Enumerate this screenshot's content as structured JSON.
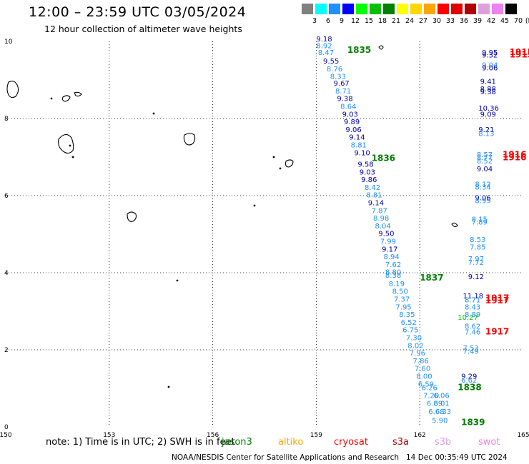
{
  "header": {
    "title": "12:00 – 23:59 UTC 03/05/2024",
    "subtitle": "12 hour collection of altimeter wave heights"
  },
  "legend": {
    "unit": "(ft)",
    "labels": [
      "3",
      "6",
      "9",
      "12",
      "15",
      "18",
      "21",
      "24",
      "27",
      "30",
      "33",
      "36",
      "39",
      "42",
      "45",
      "70"
    ],
    "colors": [
      "#808080",
      "#00ffff",
      "#1e90ff",
      "#0000ff",
      "#00ff00",
      "#00c000",
      "#008000",
      "#ffff00",
      "#ffd700",
      "#ffa500",
      "#ff0000",
      "#e00000",
      "#b00000",
      "#dda0dd",
      "#ee82ee",
      "#000000"
    ]
  },
  "axes": {
    "x_ticks": [
      "150",
      "153",
      "156",
      "159",
      "162",
      "165"
    ],
    "y_ticks": [
      "0",
      "2",
      "4",
      "6",
      "8",
      "10"
    ]
  },
  "chart_data": {
    "type": "scatter",
    "xlim": [
      150,
      165
    ],
    "ylim": [
      0,
      10
    ],
    "grid": true,
    "time_labels": [
      {
        "text": "1835",
        "x": 159.9,
        "y": 9.7,
        "color": "#008000"
      },
      {
        "text": "1836",
        "x": 160.6,
        "y": 6.9,
        "color": "#008000"
      },
      {
        "text": "1837",
        "x": 162.0,
        "y": 3.8,
        "color": "#008000"
      },
      {
        "text": "1838",
        "x": 163.1,
        "y": 0.95,
        "color": "#008000"
      },
      {
        "text": "1839",
        "x": 163.2,
        "y": 0.05,
        "color": "#008000"
      },
      {
        "text": "1915",
        "x": 164.6,
        "y": 9.65,
        "color": "#ff0000"
      },
      {
        "text": "1915",
        "x": 164.6,
        "y": 9.58,
        "color": "#ff0000"
      },
      {
        "text": "1916",
        "x": 164.4,
        "y": 6.99,
        "color": "#ff0000"
      },
      {
        "text": "1916",
        "x": 164.4,
        "y": 6.92,
        "color": "#ff0000"
      },
      {
        "text": "1917",
        "x": 163.9,
        "y": 3.27,
        "color": "#ff0000"
      },
      {
        "text": "1917",
        "x": 163.9,
        "y": 3.2,
        "color": "#ff0000"
      },
      {
        "text": "1917",
        "x": 163.9,
        "y": 2.4,
        "color": "#ff0000"
      }
    ],
    "points": [
      {
        "text": "9.18",
        "x": 159.0,
        "y": 10.0,
        "color": "#0000aa"
      },
      {
        "text": "8.92",
        "x": 159.0,
        "y": 9.82,
        "color": "#1e90ff"
      },
      {
        "text": "8.47",
        "x": 159.05,
        "y": 9.65,
        "color": "#1e90ff"
      },
      {
        "text": "9.55",
        "x": 159.2,
        "y": 9.43,
        "color": "#0000aa"
      },
      {
        "text": "8.76",
        "x": 159.3,
        "y": 9.22,
        "color": "#1e90ff"
      },
      {
        "text": "8.33",
        "x": 159.4,
        "y": 9.03,
        "color": "#1e90ff"
      },
      {
        "text": "9.67",
        "x": 159.5,
        "y": 8.85,
        "color": "#0000aa"
      },
      {
        "text": "8.71",
        "x": 159.55,
        "y": 8.65,
        "color": "#1e90ff"
      },
      {
        "text": "9.38",
        "x": 159.6,
        "y": 8.45,
        "color": "#0000aa"
      },
      {
        "text": "8.64",
        "x": 159.7,
        "y": 8.25,
        "color": "#1e90ff"
      },
      {
        "text": "9.03",
        "x": 159.75,
        "y": 8.05,
        "color": "#0000aa"
      },
      {
        "text": "9.89",
        "x": 159.8,
        "y": 7.85,
        "color": "#0000aa"
      },
      {
        "text": "9.06",
        "x": 159.85,
        "y": 7.65,
        "color": "#0000aa"
      },
      {
        "text": "9.14",
        "x": 159.95,
        "y": 7.45,
        "color": "#0000aa"
      },
      {
        "text": "8.81",
        "x": 160.0,
        "y": 7.25,
        "color": "#1e90ff"
      },
      {
        "text": "9.10",
        "x": 160.1,
        "y": 7.05,
        "color": "#0000aa"
      },
      {
        "text": "9.58",
        "x": 160.2,
        "y": 6.75,
        "color": "#0000aa"
      },
      {
        "text": "9.03",
        "x": 160.25,
        "y": 6.55,
        "color": "#0000aa"
      },
      {
        "text": "9.86",
        "x": 160.3,
        "y": 6.35,
        "color": "#0000aa"
      },
      {
        "text": "8.42",
        "x": 160.4,
        "y": 6.15,
        "color": "#1e90ff"
      },
      {
        "text": "8.81",
        "x": 160.45,
        "y": 5.95,
        "color": "#1e90ff"
      },
      {
        "text": "9.14",
        "x": 160.5,
        "y": 5.75,
        "color": "#0000aa"
      },
      {
        "text": "7.87",
        "x": 160.6,
        "y": 5.55,
        "color": "#1e90ff"
      },
      {
        "text": "8.98",
        "x": 160.65,
        "y": 5.35,
        "color": "#1e90ff"
      },
      {
        "text": "8.04",
        "x": 160.7,
        "y": 5.15,
        "color": "#1e90ff"
      },
      {
        "text": "9.50",
        "x": 160.8,
        "y": 4.95,
        "color": "#0000aa"
      },
      {
        "text": "7.99",
        "x": 160.85,
        "y": 4.75,
        "color": "#1e90ff"
      },
      {
        "text": "9.17",
        "x": 160.9,
        "y": 4.55,
        "color": "#0000aa"
      },
      {
        "text": "8.94",
        "x": 160.95,
        "y": 4.35,
        "color": "#1e90ff"
      },
      {
        "text": "7.62",
        "x": 161.0,
        "y": 4.15,
        "color": "#1e90ff"
      },
      {
        "text": "8.80",
        "x": 161.0,
        "y": 3.95,
        "color": "#1e90ff"
      },
      {
        "text": "8.38",
        "x": 161.0,
        "y": 3.87,
        "color": "#1e90ff"
      },
      {
        "text": "8.19",
        "x": 161.1,
        "y": 3.65,
        "color": "#1e90ff"
      },
      {
        "text": "8.50",
        "x": 161.2,
        "y": 3.45,
        "color": "#1e90ff"
      },
      {
        "text": "7.37",
        "x": 161.25,
        "y": 3.25,
        "color": "#1e90ff"
      },
      {
        "text": "7.95",
        "x": 161.3,
        "y": 3.05,
        "color": "#1e90ff"
      },
      {
        "text": "8.35",
        "x": 161.4,
        "y": 2.85,
        "color": "#1e90ff"
      },
      {
        "text": "6.52",
        "x": 161.45,
        "y": 2.65,
        "color": "#1e90ff"
      },
      {
        "text": "6.75",
        "x": 161.5,
        "y": 2.45,
        "color": "#1e90ff"
      },
      {
        "text": "7.30",
        "x": 161.6,
        "y": 2.25,
        "color": "#1e90ff"
      },
      {
        "text": "8.02",
        "x": 161.65,
        "y": 2.05,
        "color": "#1e90ff"
      },
      {
        "text": "7.96",
        "x": 161.7,
        "y": 1.85,
        "color": "#1e90ff"
      },
      {
        "text": "7.86",
        "x": 161.8,
        "y": 1.65,
        "color": "#1e90ff"
      },
      {
        "text": "7.60",
        "x": 161.85,
        "y": 1.45,
        "color": "#1e90ff"
      },
      {
        "text": "8.00",
        "x": 161.9,
        "y": 1.25,
        "color": "#1e90ff"
      },
      {
        "text": "6.59",
        "x": 161.95,
        "y": 1.05,
        "color": "#1e90ff"
      },
      {
        "text": "6.26",
        "x": 162.05,
        "y": 0.95,
        "color": "#1e90ff"
      },
      {
        "text": "7.20",
        "x": 162.1,
        "y": 0.75,
        "color": "#1e90ff"
      },
      {
        "text": "6.06",
        "x": 162.4,
        "y": 0.75,
        "color": "#1e90ff"
      },
      {
        "text": "6.89",
        "x": 162.2,
        "y": 0.55,
        "color": "#1e90ff"
      },
      {
        "text": "6.01",
        "x": 162.4,
        "y": 0.55,
        "color": "#1e90ff"
      },
      {
        "text": "6.68",
        "x": 162.25,
        "y": 0.33,
        "color": "#1e90ff"
      },
      {
        "text": "6.33",
        "x": 162.45,
        "y": 0.33,
        "color": "#1e90ff"
      },
      {
        "text": "5.90",
        "x": 162.35,
        "y": 0.1,
        "color": "#1e90ff"
      },
      {
        "text": "9.95",
        "x": 163.8,
        "y": 9.65,
        "color": "#0000aa"
      },
      {
        "text": "9.32",
        "x": 163.8,
        "y": 9.58,
        "color": "#0000aa"
      },
      {
        "text": "9.04",
        "x": 163.8,
        "y": 9.32,
        "color": "#1e90ff"
      },
      {
        "text": "9.06",
        "x": 163.8,
        "y": 9.25,
        "color": "#0000aa"
      },
      {
        "text": "9.41",
        "x": 163.75,
        "y": 8.9,
        "color": "#0000aa"
      },
      {
        "text": "8.88",
        "x": 163.75,
        "y": 8.7,
        "color": "#0000aa"
      },
      {
        "text": "9.38",
        "x": 163.75,
        "y": 8.63,
        "color": "#0000aa"
      },
      {
        "text": "10.36",
        "x": 163.7,
        "y": 8.2,
        "color": "#0000aa"
      },
      {
        "text": "9.09",
        "x": 163.75,
        "y": 8.05,
        "color": "#0000aa"
      },
      {
        "text": "9.21",
        "x": 163.7,
        "y": 7.65,
        "color": "#0000aa"
      },
      {
        "text": "8.13",
        "x": 163.7,
        "y": 7.55,
        "color": "#1e90ff"
      },
      {
        "text": "8.57",
        "x": 163.65,
        "y": 7.0,
        "color": "#1e90ff"
      },
      {
        "text": "8.77",
        "x": 163.65,
        "y": 6.93,
        "color": "#1e90ff"
      },
      {
        "text": "8.52",
        "x": 163.65,
        "y": 6.83,
        "color": "#1e90ff"
      },
      {
        "text": "9.04",
        "x": 163.65,
        "y": 6.63,
        "color": "#0000aa"
      },
      {
        "text": "8.12",
        "x": 163.6,
        "y": 6.23,
        "color": "#1e90ff"
      },
      {
        "text": "8.34",
        "x": 163.6,
        "y": 6.16,
        "color": "#1e90ff"
      },
      {
        "text": "9.06",
        "x": 163.6,
        "y": 5.88,
        "color": "#0000aa"
      },
      {
        "text": "8.99",
        "x": 163.6,
        "y": 5.81,
        "color": "#1e90ff"
      },
      {
        "text": "8.15",
        "x": 163.5,
        "y": 5.32,
        "color": "#1e90ff"
      },
      {
        "text": "7.89",
        "x": 163.5,
        "y": 5.25,
        "color": "#1e90ff"
      },
      {
        "text": "8.53",
        "x": 163.45,
        "y": 4.8,
        "color": "#1e90ff"
      },
      {
        "text": "7.85",
        "x": 163.45,
        "y": 4.6,
        "color": "#1e90ff"
      },
      {
        "text": "7.97",
        "x": 163.4,
        "y": 4.3,
        "color": "#1e90ff"
      },
      {
        "text": "7.72",
        "x": 163.4,
        "y": 4.2,
        "color": "#1e90ff"
      },
      {
        "text": "9.12",
        "x": 163.4,
        "y": 3.83,
        "color": "#0000aa"
      },
      {
        "text": "11.18",
        "x": 163.25,
        "y": 3.33,
        "color": "#0000aa"
      },
      {
        "text": "8.71",
        "x": 163.3,
        "y": 3.23,
        "color": "#1e90ff"
      },
      {
        "text": "8.43",
        "x": 163.3,
        "y": 3.05,
        "color": "#1e90ff"
      },
      {
        "text": "8.89",
        "x": 163.3,
        "y": 2.85,
        "color": "#1e90ff"
      },
      {
        "text": "10.27",
        "x": 163.1,
        "y": 2.78,
        "color": "#00c000"
      },
      {
        "text": "8.62",
        "x": 163.3,
        "y": 2.55,
        "color": "#1e90ff"
      },
      {
        "text": "7.46",
        "x": 163.3,
        "y": 2.4,
        "color": "#1e90ff"
      },
      {
        "text": "7.53",
        "x": 163.25,
        "y": 1.98,
        "color": "#1e90ff"
      },
      {
        "text": "7.49",
        "x": 163.25,
        "y": 1.9,
        "color": "#1e90ff"
      },
      {
        "text": "9.29",
        "x": 163.2,
        "y": 1.25,
        "color": "#0000aa"
      },
      {
        "text": "6.62",
        "x": 163.2,
        "y": 1.15,
        "color": "#1e90ff"
      }
    ]
  },
  "footer": {
    "note": "note:  1) Time is in UTC; 2) SWH is in feet",
    "satellites": [
      {
        "label": "jason3",
        "color": "#008000"
      },
      {
        "label": "altiko",
        "color": "#ffa500"
      },
      {
        "label": "cryosat",
        "color": "#ff0000"
      },
      {
        "label": "s3a",
        "color": "#b00000"
      },
      {
        "label": "s3b",
        "color": "#dda0dd"
      },
      {
        "label": "swot",
        "color": "#ee82ee"
      }
    ],
    "credit": "NOAA/NESDIS Center for Satellite Applications and Research",
    "timestamp": "14 Dec 00:35:49 UTC 2024"
  }
}
